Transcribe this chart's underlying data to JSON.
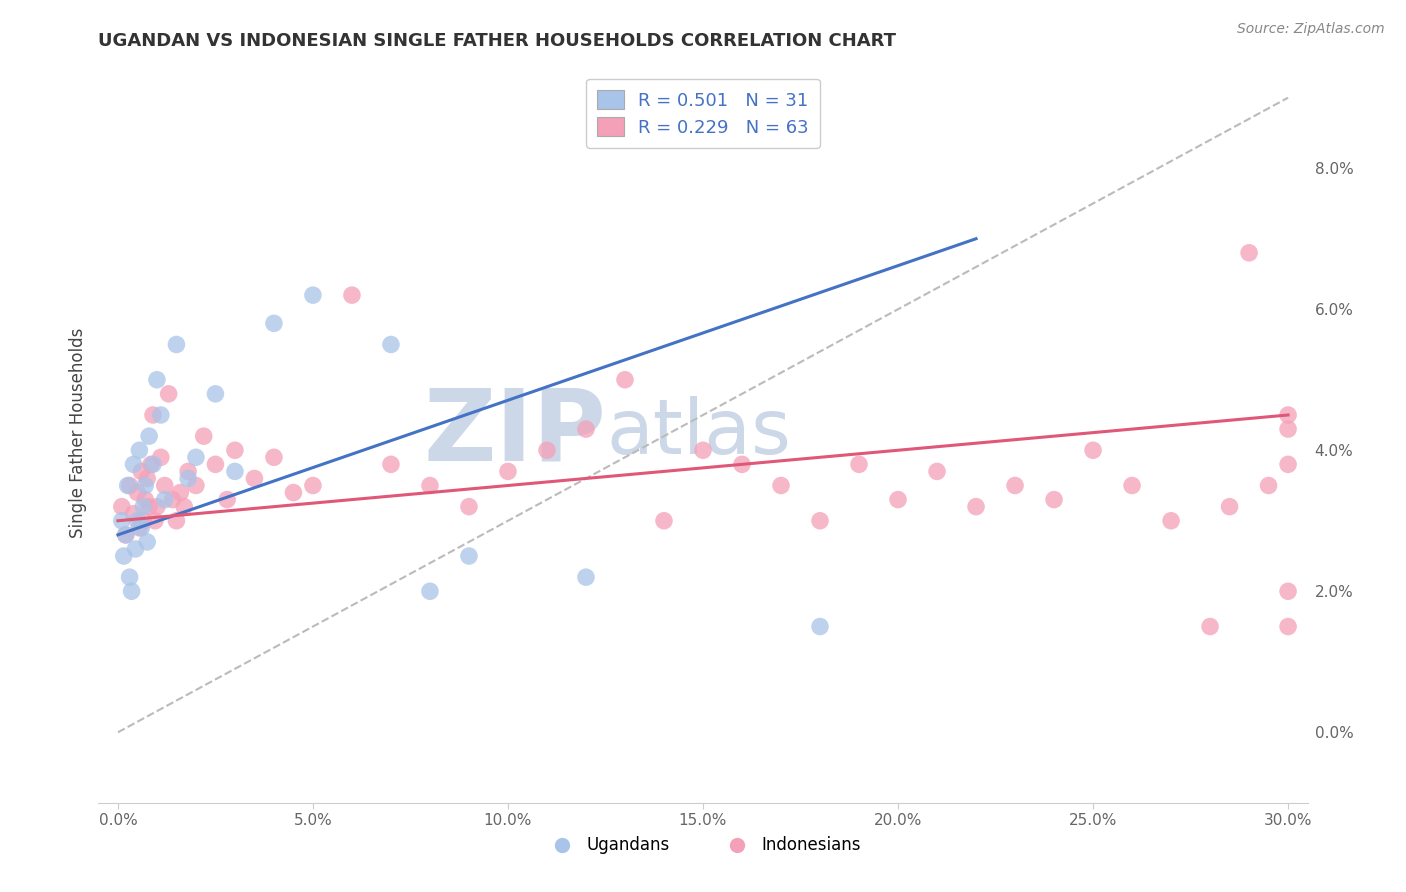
{
  "title": "UGANDAN VS INDONESIAN SINGLE FATHER HOUSEHOLDS CORRELATION CHART",
  "source_text": "Source: ZipAtlas.com",
  "ylabel": "Single Father Households",
  "xlim": [
    0.0,
    30.0
  ],
  "ylim_data": [
    -1.0,
    9.5
  ],
  "xticks": [
    0.0,
    5.0,
    10.0,
    15.0,
    20.0,
    25.0,
    30.0
  ],
  "yticks": [
    0.0,
    2.0,
    4.0,
    6.0,
    8.0
  ],
  "ugandan_R": 0.501,
  "ugandan_N": 31,
  "indonesian_R": 0.229,
  "indonesian_N": 63,
  "ugandan_color": "#a8c4e8",
  "indonesian_color": "#f4a0b8",
  "ugandan_line_color": "#4472c4",
  "indonesian_line_color": "#e05878",
  "ref_line_color": "#bbbbbb",
  "grid_color": "#d8d8d8",
  "watermark_text": "ZIPatlas",
  "watermark_color": "#ccd8e8",
  "ugandan_x": [
    0.1,
    0.15,
    0.2,
    0.25,
    0.3,
    0.35,
    0.4,
    0.45,
    0.5,
    0.55,
    0.6,
    0.65,
    0.7,
    0.75,
    0.8,
    0.9,
    1.0,
    1.1,
    1.2,
    1.5,
    1.8,
    2.0,
    2.5,
    3.0,
    4.0,
    5.0,
    7.0,
    8.0,
    9.0,
    12.0,
    18.0
  ],
  "ugandan_y": [
    3.0,
    2.5,
    2.8,
    3.5,
    2.2,
    2.0,
    3.8,
    2.6,
    3.0,
    4.0,
    2.9,
    3.2,
    3.5,
    2.7,
    4.2,
    3.8,
    5.0,
    4.5,
    3.3,
    5.5,
    3.6,
    3.9,
    4.8,
    3.7,
    5.8,
    6.2,
    5.5,
    2.0,
    2.5,
    2.2,
    1.5
  ],
  "indonesian_x": [
    0.1,
    0.2,
    0.3,
    0.4,
    0.5,
    0.55,
    0.6,
    0.65,
    0.7,
    0.75,
    0.8,
    0.85,
    0.9,
    0.95,
    1.0,
    1.1,
    1.2,
    1.3,
    1.4,
    1.5,
    1.6,
    1.7,
    1.8,
    2.0,
    2.2,
    2.5,
    2.8,
    3.0,
    3.5,
    4.0,
    4.5,
    5.0,
    6.0,
    7.0,
    8.0,
    9.0,
    10.0,
    11.0,
    12.0,
    13.0,
    14.0,
    15.0,
    16.0,
    17.0,
    18.0,
    19.0,
    20.0,
    21.0,
    22.0,
    23.0,
    24.0,
    25.0,
    26.0,
    27.0,
    28.0,
    28.5,
    29.0,
    29.5,
    30.0,
    30.0,
    30.0,
    30.0,
    30.0
  ],
  "indonesian_y": [
    3.2,
    2.8,
    3.5,
    3.1,
    3.4,
    2.9,
    3.7,
    3.0,
    3.3,
    3.6,
    3.2,
    3.8,
    4.5,
    3.0,
    3.2,
    3.9,
    3.5,
    4.8,
    3.3,
    3.0,
    3.4,
    3.2,
    3.7,
    3.5,
    4.2,
    3.8,
    3.3,
    4.0,
    3.6,
    3.9,
    3.4,
    3.5,
    6.2,
    3.8,
    3.5,
    3.2,
    3.7,
    4.0,
    4.3,
    5.0,
    3.0,
    4.0,
    3.8,
    3.5,
    3.0,
    3.8,
    3.3,
    3.7,
    3.2,
    3.5,
    3.3,
    4.0,
    3.5,
    3.0,
    1.5,
    3.2,
    6.8,
    3.5,
    4.3,
    2.0,
    1.5,
    4.5,
    3.8
  ],
  "ugandan_trend_x0": 0.0,
  "ugandan_trend_y0": 2.8,
  "ugandan_trend_x1": 22.0,
  "ugandan_trend_y1": 7.0,
  "indonesian_trend_x0": 0.0,
  "indonesian_trend_y0": 3.0,
  "indonesian_trend_x1": 30.0,
  "indonesian_trend_y1": 4.5,
  "ref_line_x0": 0.0,
  "ref_line_y0": 0.0,
  "ref_line_x1": 30.0,
  "ref_line_y1": 9.0
}
